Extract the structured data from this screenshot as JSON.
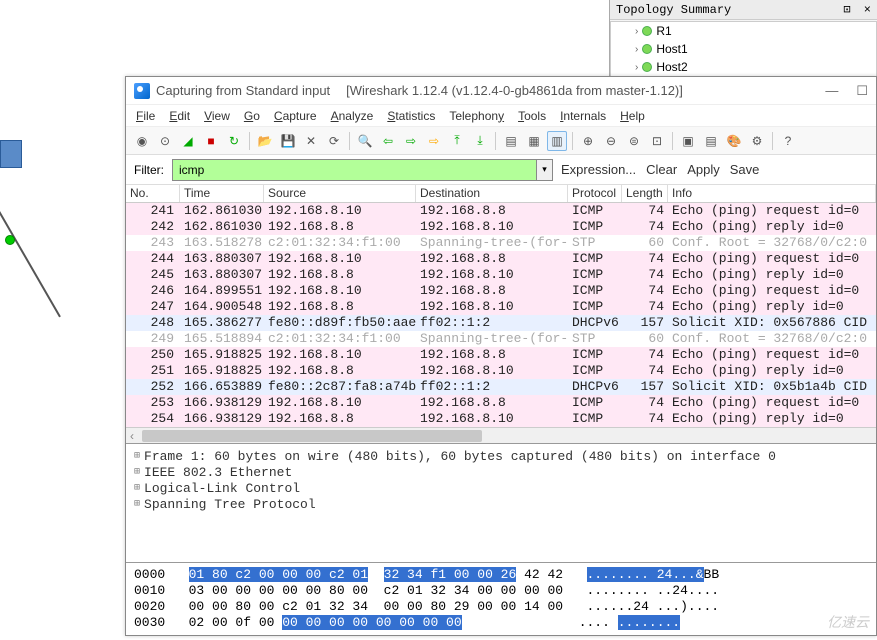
{
  "topology": {
    "title": "Topology Summary",
    "close_icon": "×",
    "dock_icon": "⊡",
    "items": [
      "R1",
      "Host1",
      "Host2"
    ]
  },
  "window": {
    "title_app": "Capturing from Standard input",
    "title_version": "[Wireshark 1.12.4  (v1.12.4-0-gb4861da from master-1.12)]",
    "menu": [
      "File",
      "Edit",
      "View",
      "Go",
      "Capture",
      "Analyze",
      "Statistics",
      "Telephony",
      "Tools",
      "Internals",
      "Help"
    ]
  },
  "filter": {
    "label": "Filter:",
    "value": "icmp",
    "links": [
      "Expression...",
      "Clear",
      "Apply",
      "Save"
    ]
  },
  "columns": {
    "no": "No.",
    "time": "Time",
    "src": "Source",
    "dst": "Destination",
    "proto": "Protocol",
    "len": "Length",
    "info": "Info"
  },
  "packets": [
    {
      "no": "241",
      "time": "162.861030",
      "src": "192.168.8.10",
      "dst": "192.168.8.8",
      "proto": "ICMP",
      "len": "74",
      "info": "Echo (ping) request  id=0",
      "cls": "row-pink"
    },
    {
      "no": "242",
      "time": "162.861030",
      "src": "192.168.8.8",
      "dst": "192.168.8.10",
      "proto": "ICMP",
      "len": "74",
      "info": "Echo (ping) reply    id=0",
      "cls": "row-pink"
    },
    {
      "no": "243",
      "time": "163.518278",
      "src": "c2:01:32:34:f1:00",
      "dst": "Spanning-tree-(for-",
      "proto": "STP",
      "len": "60",
      "info": "Conf. Root = 32768/0/c2:0",
      "cls": "row-gray"
    },
    {
      "no": "244",
      "time": "163.880307",
      "src": "192.168.8.10",
      "dst": "192.168.8.8",
      "proto": "ICMP",
      "len": "74",
      "info": "Echo (ping) request  id=0",
      "cls": "row-pink"
    },
    {
      "no": "245",
      "time": "163.880307",
      "src": "192.168.8.8",
      "dst": "192.168.8.10",
      "proto": "ICMP",
      "len": "74",
      "info": "Echo (ping) reply    id=0",
      "cls": "row-pink"
    },
    {
      "no": "246",
      "time": "164.899551",
      "src": "192.168.8.10",
      "dst": "192.168.8.8",
      "proto": "ICMP",
      "len": "74",
      "info": "Echo (ping) request  id=0",
      "cls": "row-pink"
    },
    {
      "no": "247",
      "time": "164.900548",
      "src": "192.168.8.8",
      "dst": "192.168.8.10",
      "proto": "ICMP",
      "len": "74",
      "info": "Echo (ping) reply    id=0",
      "cls": "row-pink"
    },
    {
      "no": "248",
      "time": "165.386277",
      "src": "fe80::d89f:fb50:aae",
      "dst": "ff02::1:2",
      "proto": "DHCPv6",
      "len": "157",
      "info": "Solicit XID: 0x567886 CID",
      "cls": "row-blue"
    },
    {
      "no": "249",
      "time": "165.518894",
      "src": "c2:01:32:34:f1:00",
      "dst": "Spanning-tree-(for-",
      "proto": "STP",
      "len": "60",
      "info": "Conf. Root = 32768/0/c2:0",
      "cls": "row-gray"
    },
    {
      "no": "250",
      "time": "165.918825",
      "src": "192.168.8.10",
      "dst": "192.168.8.8",
      "proto": "ICMP",
      "len": "74",
      "info": "Echo (ping) request  id=0",
      "cls": "row-pink"
    },
    {
      "no": "251",
      "time": "165.918825",
      "src": "192.168.8.8",
      "dst": "192.168.8.10",
      "proto": "ICMP",
      "len": "74",
      "info": "Echo (ping) reply    id=0",
      "cls": "row-pink"
    },
    {
      "no": "252",
      "time": "166.653889",
      "src": "fe80::2c87:fa8:a74b",
      "dst": "ff02::1:2",
      "proto": "DHCPv6",
      "len": "157",
      "info": "Solicit XID: 0x5b1a4b CID",
      "cls": "row-blue"
    },
    {
      "no": "253",
      "time": "166.938129",
      "src": "192.168.8.10",
      "dst": "192.168.8.8",
      "proto": "ICMP",
      "len": "74",
      "info": "Echo (ping) request  id=0",
      "cls": "row-pink"
    },
    {
      "no": "254",
      "time": "166.938129",
      "src": "192.168.8.8",
      "dst": "192.168.8.10",
      "proto": "ICMP",
      "len": "74",
      "info": "Echo (ping) reply    id=0",
      "cls": "row-pink"
    }
  ],
  "details": [
    "Frame 1: 60 bytes on wire (480 bits), 60 bytes captured (480 bits) on interface 0",
    "IEEE 802.3 Ethernet",
    "Logical-Link Control",
    "Spanning Tree Protocol"
  ],
  "hex": {
    "lines": [
      {
        "off": "0000",
        "h1": "01 80 c2 00 00 00 c2 01",
        "h2": "32 34 f1 00 00 26",
        "h3": " 42 42",
        "a1": "........ 24...&",
        "a2": "BB"
      },
      {
        "off": "0010",
        "h1": "03 00 00 00 00 00 80 00",
        "h2": "c2 01 32 34 00 00 00 00",
        "h3": "",
        "a1": "........ ..24....",
        "a2": ""
      },
      {
        "off": "0020",
        "h1": "00 00 80 00 c2 01 32 34",
        "h2": "00 00 80 29 00 00 14 00",
        "h3": "",
        "a1": "......24 ...)....",
        "a2": ""
      },
      {
        "off": "0030",
        "h1": "02 00 0f 00 ",
        "h2": "00 00 00 00 00 00 00 00",
        "h3": "",
        "a1": ".... ",
        "a2": ""
      }
    ]
  },
  "watermark": "亿速云",
  "colors": {
    "pink": "#ffe8f5",
    "blue": "#e8f0ff",
    "filter_bg": "#b3ff99",
    "sel_bg": "#3470d0"
  }
}
